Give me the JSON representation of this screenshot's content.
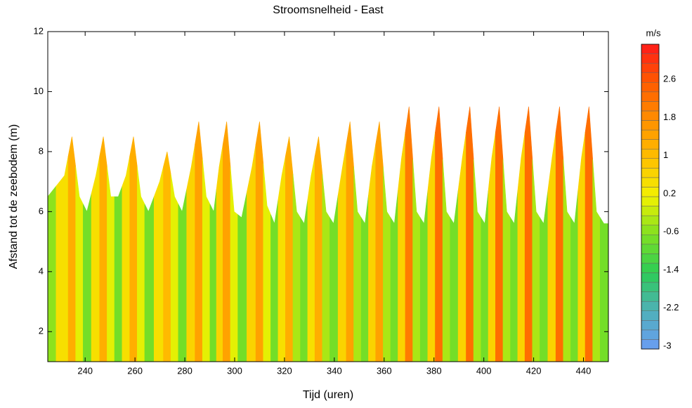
{
  "chart_data": {
    "type": "heatmap",
    "title": "Stroomsnelheid - East",
    "x_label": "Tijd (uren)",
    "y_label": "Afstand tot de zeebodem (m)",
    "xlim": [
      225,
      450
    ],
    "xticks": [
      240,
      260,
      280,
      300,
      320,
      340,
      360,
      380,
      400,
      420,
      440
    ],
    "ylim": [
      1,
      12
    ],
    "yticks": [
      2,
      4,
      6,
      8,
      10,
      12
    ],
    "x": [
      225,
      231.7,
      234.7,
      237.7,
      240.7,
      244.3,
      247.3,
      250.3,
      253.3,
      256.4,
      259.4,
      262.4,
      265.4,
      269.9,
      272.9,
      275.9,
      278.9,
      282.6,
      285.6,
      288.6,
      291.6,
      293.8,
      296.8,
      299.8,
      302.8,
      307,
      310,
      313,
      316,
      318.9,
      321.9,
      324.9,
      327.9,
      330.7,
      333.7,
      336.7,
      339.7,
      343.3,
      346.3,
      349.3,
      352.3,
      355.1,
      358.1,
      361.1,
      364.1,
      367,
      370,
      373,
      376,
      379,
      382,
      385,
      388,
      391.4,
      394.4,
      397.4,
      400.4,
      403.2,
      406.2,
      409.2,
      412.2,
      415,
      418,
      421,
      424,
      427.4,
      430.4,
      433.4,
      436.4,
      439.2,
      442.2,
      445.2,
      448.2,
      450
    ],
    "top": [
      6.5,
      7.2,
      8.5,
      6.5,
      6.0,
      7.2,
      8.5,
      6.5,
      6.5,
      7.2,
      8.5,
      6.5,
      6.0,
      7.0,
      8.0,
      6.5,
      6.0,
      7.5,
      9.0,
      6.5,
      6.0,
      7.5,
      9.0,
      6.0,
      5.8,
      7.5,
      9.0,
      6.2,
      5.6,
      7.2,
      8.5,
      6.0,
      5.6,
      7.2,
      8.5,
      6.0,
      5.6,
      7.5,
      9.0,
      6.0,
      5.6,
      7.5,
      9.0,
      6.0,
      5.6,
      7.8,
      9.5,
      6.0,
      5.6,
      7.8,
      9.5,
      6.0,
      5.6,
      7.8,
      9.5,
      6.0,
      5.6,
      7.8,
      9.5,
      6.0,
      5.6,
      7.8,
      9.5,
      6.0,
      5.6,
      7.8,
      9.5,
      6.0,
      5.6,
      7.8,
      9.5,
      6.0,
      5.6,
      5.6
    ],
    "values": [
      -0.5,
      0.4,
      1.2,
      0.0,
      -0.6,
      0.4,
      1.2,
      0.0,
      -0.6,
      0.4,
      1.2,
      0.0,
      -0.6,
      0.4,
      1.0,
      0.0,
      -0.6,
      0.6,
      1.4,
      0.0,
      -0.6,
      0.6,
      1.4,
      0.0,
      -0.6,
      0.6,
      1.4,
      0.0,
      -0.6,
      0.4,
      1.2,
      -0.2,
      -0.6,
      0.4,
      1.2,
      -0.2,
      -0.6,
      0.6,
      1.4,
      -0.2,
      -0.6,
      0.6,
      1.6,
      -0.2,
      -0.6,
      0.8,
      2.0,
      -0.2,
      -0.6,
      0.8,
      2.2,
      -0.2,
      -0.6,
      0.8,
      2.2,
      -0.2,
      -0.6,
      0.8,
      2.2,
      -0.2,
      -0.6,
      0.8,
      2.2,
      -0.2,
      -0.6,
      0.8,
      2.2,
      -0.2,
      -0.6,
      0.8,
      2.2,
      -0.2,
      -0.6,
      -0.6
    ],
    "colorbar": {
      "title": "m/s",
      "lim": [
        -3,
        3.4
      ],
      "ticks": [
        -3,
        -2.2,
        -1.4,
        -0.6,
        0.2,
        1,
        1.8,
        2.6
      ],
      "bands": 32,
      "colors": [
        "#6a9cf5",
        "#4fb0b8",
        "#2ccc55",
        "#7ee021",
        "#f2f200",
        "#ffc000",
        "#ff9000",
        "#ff5a00",
        "#ff1a1a"
      ]
    }
  }
}
